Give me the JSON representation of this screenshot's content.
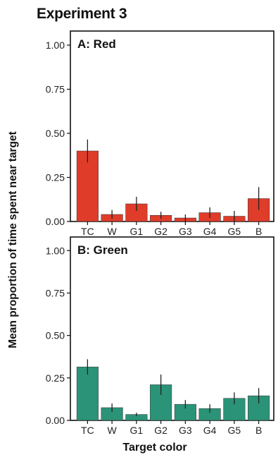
{
  "figure": {
    "title": "Experiment 3",
    "ylabel": "Mean proportion of time spent near target",
    "xlabel": "Target color"
  },
  "chart_data": [
    {
      "type": "bar",
      "title": "A: Red",
      "color": "#e03c2a",
      "categories": [
        "TC",
        "W",
        "G1",
        "G2",
        "G3",
        "G4",
        "G5",
        "B"
      ],
      "values": [
        0.4,
        0.04,
        0.1,
        0.035,
        0.02,
        0.05,
        0.03,
        0.13
      ],
      "error": [
        0.065,
        0.025,
        0.04,
        0.02,
        0.02,
        0.03,
        0.03,
        0.065
      ],
      "ylim": [
        0,
        1.08
      ],
      "yticks": [
        "0.00",
        "0.25",
        "0.50",
        "0.75",
        "1.00"
      ],
      "grid": false
    },
    {
      "type": "bar",
      "title": "B: Green",
      "color": "#2b9377",
      "categories": [
        "TC",
        "W",
        "G1",
        "G2",
        "G3",
        "G4",
        "G5",
        "B"
      ],
      "values": [
        0.315,
        0.075,
        0.035,
        0.21,
        0.095,
        0.07,
        0.13,
        0.145
      ],
      "error": [
        0.045,
        0.025,
        0.01,
        0.06,
        0.025,
        0.025,
        0.035,
        0.045
      ],
      "ylim": [
        0,
        1.08
      ],
      "yticks": [
        "0.00",
        "0.25",
        "0.50",
        "0.75",
        "1.00"
      ],
      "grid": false
    }
  ]
}
